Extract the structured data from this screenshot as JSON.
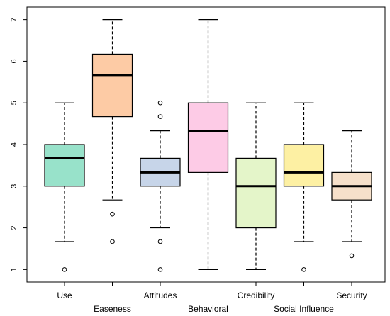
{
  "chart_data": {
    "type": "boxplot",
    "title": "",
    "xlabel": "",
    "ylabel": "",
    "ylim": [
      0.7,
      7.3
    ],
    "yticks": [
      1,
      2,
      3,
      4,
      5,
      6,
      7
    ],
    "grid": false,
    "categories": [
      "Use",
      "Easeness",
      "Attitudes",
      "Behavioral",
      "Credibility",
      "Social Influence",
      "Security"
    ],
    "label_row": [
      "upper",
      "lower",
      "upper",
      "lower",
      "upper",
      "lower",
      "upper"
    ],
    "boxes": [
      {
        "name": "Use",
        "min": 1.67,
        "q1": 3.0,
        "median": 3.67,
        "q3": 4.0,
        "max": 5.0,
        "outliers": [
          1.0
        ],
        "color": "#98E2CA"
      },
      {
        "name": "Easeness",
        "min": 2.67,
        "q1": 4.67,
        "median": 5.67,
        "q3": 6.17,
        "max": 7.0,
        "outliers": [
          2.33,
          1.67
        ],
        "color": "#FDCBA5"
      },
      {
        "name": "Attitudes",
        "min": 2.0,
        "q1": 3.0,
        "median": 3.33,
        "q3": 3.67,
        "max": 4.33,
        "outliers": [
          5.0,
          4.67,
          1.67,
          1.0
        ],
        "color": "#C7D5E9"
      },
      {
        "name": "Behavioral",
        "min": 1.0,
        "q1": 3.33,
        "median": 4.33,
        "q3": 5.0,
        "max": 7.0,
        "outliers": [],
        "color": "#FDCBE6"
      },
      {
        "name": "Credibility",
        "min": 1.0,
        "q1": 2.0,
        "median": 3.0,
        "q3": 3.67,
        "max": 5.0,
        "outliers": [],
        "color": "#E4F5C9"
      },
      {
        "name": "Social Influence",
        "min": 1.67,
        "q1": 3.0,
        "median": 3.33,
        "q3": 4.0,
        "max": 5.0,
        "outliers": [
          1.0
        ],
        "color": "#FDF0A3"
      },
      {
        "name": "Security",
        "min": 1.67,
        "q1": 2.67,
        "median": 3.0,
        "q3": 3.33,
        "max": 4.33,
        "outliers": [
          1.33
        ],
        "color": "#F6E0CA"
      }
    ]
  }
}
